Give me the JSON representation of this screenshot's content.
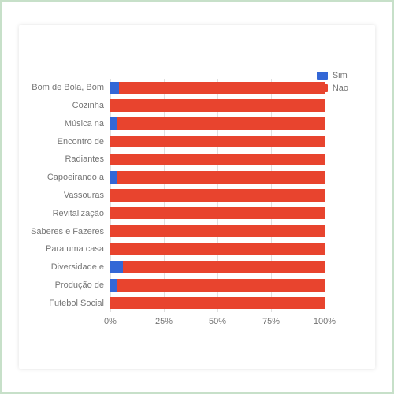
{
  "chart": {
    "type": "stacked-bar-horizontal",
    "background_color": "#ffffff",
    "border_color": "#c7e0c9",
    "grid_color": "#e0e0e0",
    "axis_label_color": "#757575",
    "axis_fontsize": 11,
    "label_fontsize": 11,
    "xlim": [
      0,
      100
    ],
    "xtick_step": 25,
    "xtick_suffix": "%",
    "bar_height_ratio": 0.68,
    "legend_position": "top-right",
    "legend": [
      {
        "key": "sim",
        "label": "Sim",
        "color": "#3367d6"
      },
      {
        "key": "nao",
        "label": "Nao",
        "color": "#e8442e"
      }
    ],
    "categories": [
      "Bom de Bola, Bom",
      "Cozinha",
      "Música na",
      "Encontro de",
      "Radiantes",
      "Capoeirando a",
      "Vassouras",
      "Revitalização",
      "Saberes e Fazeres",
      "Para uma casa",
      "Diversidade e",
      "Produção de",
      "Futebol Social"
    ],
    "series": {
      "sim": [
        4,
        0,
        3,
        0,
        0,
        3,
        0,
        0,
        0,
        0,
        6,
        3,
        0
      ],
      "nao": [
        96,
        100,
        97,
        100,
        100,
        97,
        100,
        100,
        100,
        100,
        94,
        97,
        100
      ]
    }
  }
}
